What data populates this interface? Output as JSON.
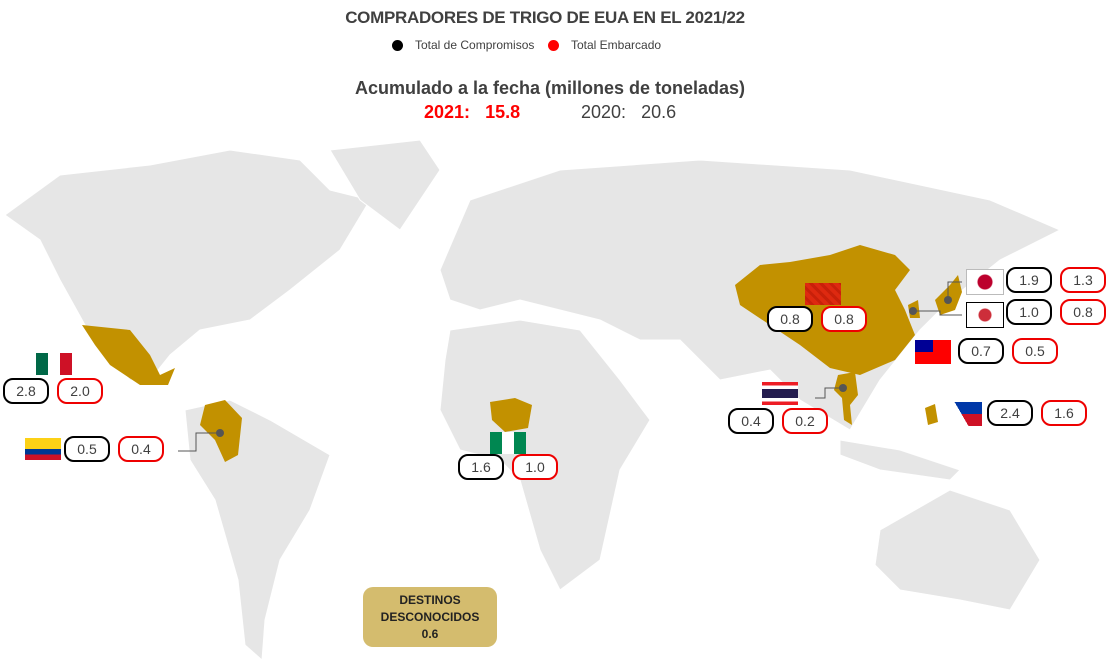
{
  "title": "COMPRADORES DE TRIGO DE EUA EN EL 2021/22",
  "legend": [
    {
      "label": "Total de Compromisos",
      "color": "#000000"
    },
    {
      "label": "Total Embarcado",
      "color": "#ff0000"
    }
  ],
  "subtitle": "Acumulado a la fecha (millones de toneladas)",
  "current": {
    "label": "2021:",
    "value": "15.8",
    "color": "#ff0000"
  },
  "previous": {
    "label": "2020:",
    "value": "20.6"
  },
  "highlight_color": "#c29100",
  "countries": [
    {
      "name": "Mexico",
      "commitments": "2.8",
      "shipped": "2.0"
    },
    {
      "name": "Colombia",
      "commitments": "0.5",
      "shipped": "0.4"
    },
    {
      "name": "Nigeria",
      "commitments": "1.6",
      "shipped": "1.0"
    },
    {
      "name": "China",
      "commitments": "0.8",
      "shipped": "0.8"
    },
    {
      "name": "Japan",
      "commitments": "1.9",
      "shipped": "1.3"
    },
    {
      "name": "South Korea",
      "commitments": "1.0",
      "shipped": "0.8"
    },
    {
      "name": "Taiwan",
      "commitments": "0.7",
      "shipped": "0.5"
    },
    {
      "name": "Thailand",
      "commitments": "0.4",
      "shipped": "0.2"
    },
    {
      "name": "Philippines",
      "commitments": "2.4",
      "shipped": "1.6"
    }
  ],
  "unknown": {
    "line1": "DESTINOS",
    "line2": "DESCONOCIDOS",
    "value": "0.6"
  }
}
